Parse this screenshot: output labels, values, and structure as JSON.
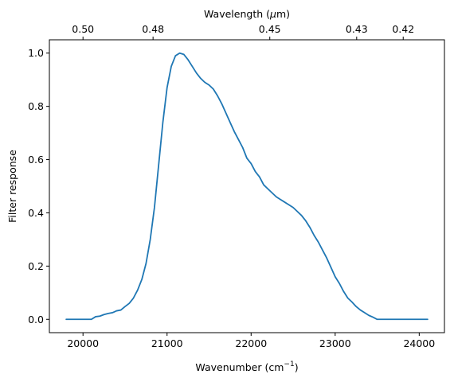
{
  "chart_data": {
    "type": "line",
    "xlabel": "Wavenumber (cm",
    "xlabel_superscript": "−1",
    "xlabel_suffix": ")",
    "ylabel": "Filter response",
    "top_xlabel_prefix": "Wavelength (",
    "top_xlabel_mu": "μ",
    "top_xlabel_suffix": "m)",
    "xlim": [
      19600,
      24300
    ],
    "ylim": [
      -0.05,
      1.05
    ],
    "bottom_ticks": [
      20000,
      21000,
      22000,
      23000,
      24000
    ],
    "bottom_tick_labels": [
      "20000",
      "21000",
      "22000",
      "23000",
      "24000"
    ],
    "left_ticks": [
      0.0,
      0.2,
      0.4,
      0.6,
      0.8,
      1.0
    ],
    "left_tick_labels": [
      "0.0",
      "0.2",
      "0.4",
      "0.6",
      "0.8",
      "1.0"
    ],
    "top_ticks": [
      0.5,
      0.48,
      0.45,
      0.43,
      0.42
    ],
    "top_tick_labels": [
      "0.50",
      "0.48",
      "0.45",
      "0.43",
      "0.42"
    ],
    "grid": false,
    "colors": {
      "line": "#1f77b4",
      "axes": "#000000"
    },
    "series": [
      {
        "x": [
          19800,
          20000,
          20050,
          20100,
          20150,
          20200,
          20250,
          20300,
          20350,
          20400,
          20450,
          20500,
          20550,
          20600,
          20650,
          20700,
          20750,
          20800,
          20850,
          20900,
          20950,
          21000,
          21050,
          21100,
          21150,
          21200,
          21250,
          21300,
          21350,
          21400,
          21450,
          21500,
          21550,
          21600,
          21650,
          21700,
          21750,
          21800,
          21850,
          21900,
          21950,
          22000,
          22050,
          22100,
          22150,
          22200,
          22250,
          22300,
          22350,
          22400,
          22450,
          22500,
          22550,
          22600,
          22650,
          22700,
          22750,
          22800,
          22850,
          22900,
          22950,
          23000,
          23050,
          23100,
          23150,
          23200,
          23250,
          23300,
          23350,
          23400,
          23450,
          23500,
          23550,
          23600,
          23700,
          23800,
          23900,
          24000,
          24100
        ],
        "y": [
          0.0,
          0.0,
          0.0,
          0.0,
          0.01,
          0.012,
          0.018,
          0.022,
          0.025,
          0.032,
          0.035,
          0.048,
          0.06,
          0.08,
          0.11,
          0.15,
          0.21,
          0.3,
          0.42,
          0.58,
          0.74,
          0.87,
          0.95,
          0.99,
          1.0,
          0.995,
          0.975,
          0.95,
          0.925,
          0.905,
          0.89,
          0.88,
          0.865,
          0.84,
          0.81,
          0.775,
          0.74,
          0.705,
          0.675,
          0.645,
          0.605,
          0.585,
          0.555,
          0.535,
          0.505,
          0.49,
          0.475,
          0.46,
          0.45,
          0.44,
          0.43,
          0.42,
          0.405,
          0.39,
          0.37,
          0.345,
          0.315,
          0.29,
          0.26,
          0.23,
          0.195,
          0.16,
          0.135,
          0.105,
          0.08,
          0.065,
          0.048,
          0.035,
          0.025,
          0.015,
          0.008,
          0.0,
          0.0,
          0.0,
          0.0,
          0.0,
          0.0,
          0.0,
          0.0
        ]
      }
    ]
  }
}
